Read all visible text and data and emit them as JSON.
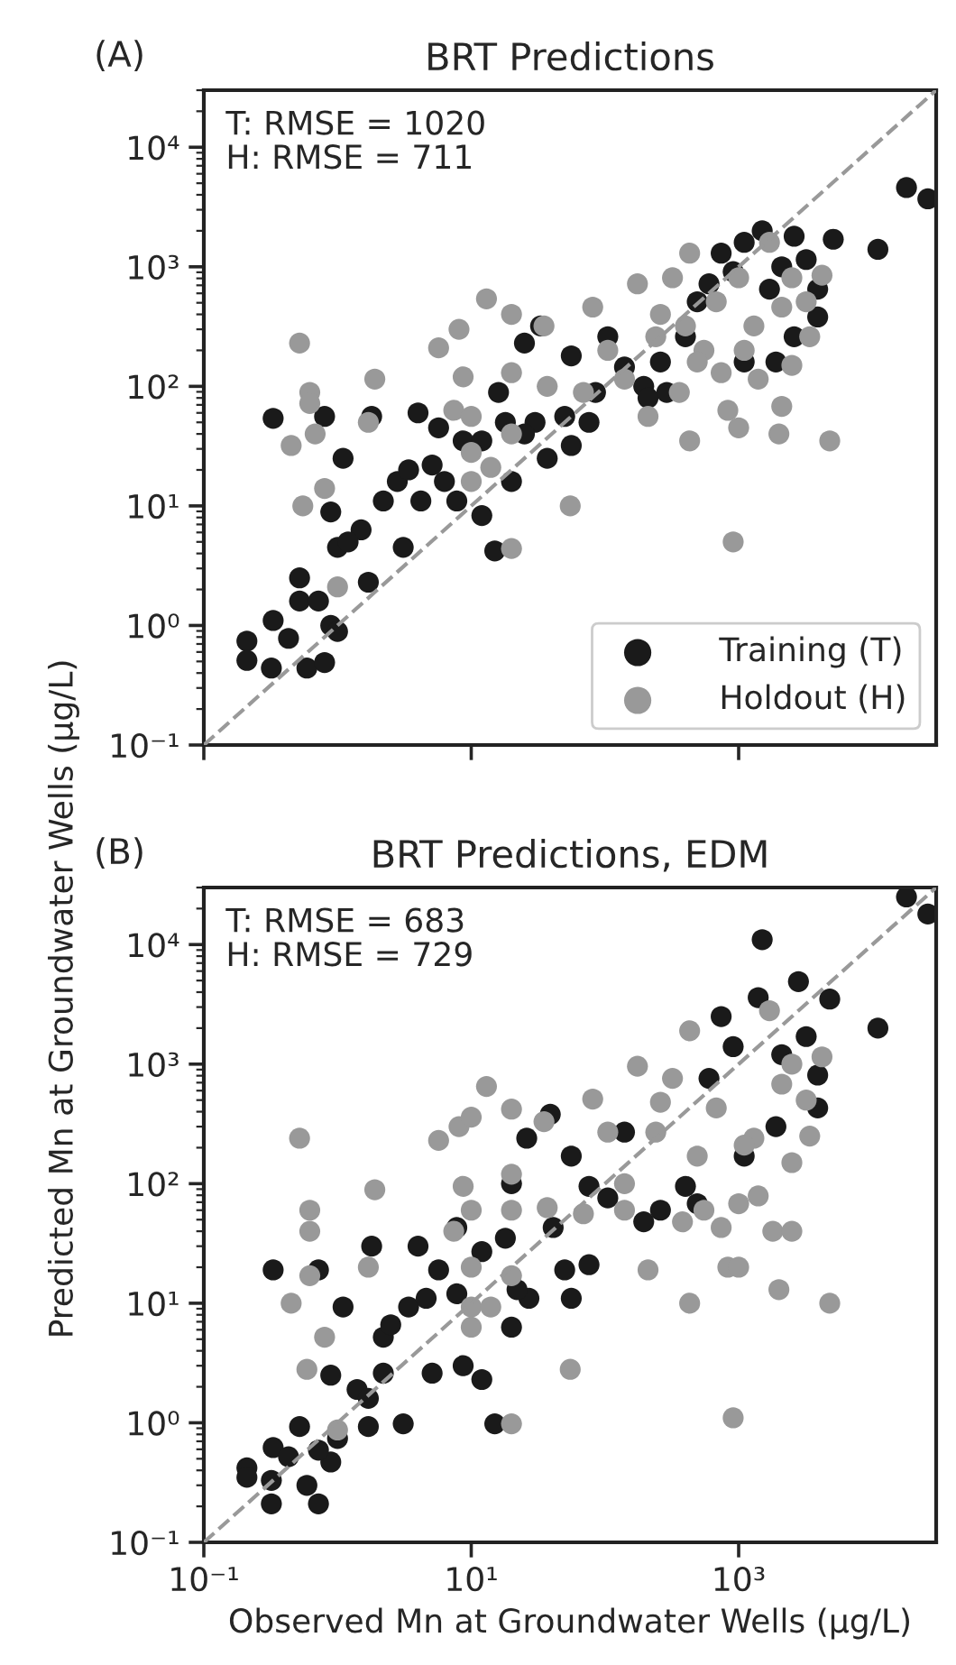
{
  "chart_data": [
    {
      "type": "scatter",
      "title": "BRT Predictions",
      "annotations": [
        "(A)",
        "T: RMSE = 1020",
        "H: RMSE = 711"
      ],
      "xlim": [
        0.1,
        30000
      ],
      "ylim": [
        0.1,
        30000
      ],
      "log": "xy",
      "grid": false,
      "legend": "lower right",
      "tick_labels": "y",
      "xticks": [
        {
          "value": 0.1,
          "label": null
        },
        {
          "value": 10,
          "label": null
        },
        {
          "value": 1000,
          "label": null
        }
      ],
      "yticks": [
        {
          "value": 0.1,
          "label": "10⁻¹"
        },
        {
          "value": 1,
          "label": "10⁰"
        },
        {
          "value": 10,
          "label": "10¹"
        },
        {
          "value": 100,
          "label": "10²"
        },
        {
          "value": 1000,
          "label": "10³"
        },
        {
          "value": 10000,
          "label": "10⁴"
        }
      ],
      "series": [
        {
          "type": "line",
          "line_style": "dashed",
          "color": "#999999",
          "x": [
            0.1,
            30000
          ],
          "values": [
            0.1,
            30000
          ]
        },
        {
          "name": "Training (T)",
          "marker": "circle",
          "color": "#1a1a1a",
          "x": [
            0.33,
            0.21,
            0.21,
            0.32,
            0.33,
            0.52,
            0.52,
            0.59,
            0.8,
            0.89,
            1.0,
            0.8,
            1.1,
            0.89,
            1.0,
            1.5,
            1.7,
            1.8,
            2.2,
            2.8,
            3.1,
            3.4,
            4.2,
            4.0,
            5.1,
            5.7,
            6.3,
            7.8,
            8.7,
            12,
            15,
            18,
            20,
            25,
            33,
            30,
            37,
            50,
            56,
            56,
            76,
            85,
            105,
            140,
            195,
            210,
            260,
            400,
            490,
            740,
            1100,
            1500,
            2600,
            3200,
            3900,
            3900,
            2600,
            1900,
            1100,
            5100,
            11000,
            18000,
            26000,
            600,
            910,
            2100,
            1700,
            290,
            0.72,
            0.43,
            1.2,
            16,
            12,
            25
          ],
          "values": [
            54,
            0.74,
            0.51,
            0.44,
            1.1,
            2.5,
            1.6,
            0.44,
            0.49,
            1.0,
            0.89,
            56,
            25,
            8.9,
            4.5,
            6.3,
            2.3,
            56,
            11,
            16,
            4.5,
            20,
            11,
            60,
            22,
            45,
            16,
            11,
            35,
            8.3,
            4.2,
            50,
            16,
            230,
            320,
            50,
            25,
            56,
            32,
            180,
            50,
            89,
            260,
            145,
            100,
            80,
            160,
            260,
            510,
            1300,
            1600,
            2000,
            1800,
            1150,
            650,
            380,
            260,
            160,
            160,
            1700,
            1400,
            4600,
            3700,
            720,
            910,
            1000,
            650,
            89,
            1.6,
            0.78,
            5.0,
            89,
            35,
            40
          ]
        },
        {
          "name": "Holdout (H)",
          "marker": "circle",
          "color": "#999999",
          "x": [
            0.52,
            0.62,
            0.62,
            0.45,
            0.68,
            0.55,
            0.8,
            1.0,
            1.9,
            1.7,
            5.7,
            8.1,
            13,
            20,
            8.7,
            7.4,
            10,
            10,
            10,
            14,
            20,
            20,
            20,
            37,
            35,
            55,
            81,
            69,
            105,
            140,
            175,
            210,
            260,
            320,
            400,
            360,
            430,
            430,
            550,
            680,
            740,
            830,
            1000,
            910,
            1000,
            1300,
            1400,
            1700,
            2100,
            2500,
            2500,
            2100,
            2000,
            3400,
            3200,
            4200,
            4800,
            240,
            490,
            1100
          ],
          "values": [
            230,
            89,
            72,
            32,
            40,
            10,
            14,
            2.1,
            115,
            50,
            210,
            300,
            540,
            400,
            120,
            63,
            56,
            28,
            16,
            21,
            130,
            40,
            4.4,
            100,
            320,
            10,
            460,
            89,
            200,
            115,
            720,
            56,
            400,
            810,
            320,
            89,
            1300,
            35,
            200,
            510,
            130,
            63,
            45,
            5.0,
            810,
            320,
            115,
            1600,
            460,
            810,
            150,
            68,
            40,
            260,
            510,
            850,
            35,
            260,
            160,
            200
          ]
        }
      ]
    },
    {
      "type": "scatter",
      "title": "BRT Predictions, EDM",
      "annotations": [
        "(B)",
        "T: RMSE = 683",
        "H: RMSE = 729"
      ],
      "xlabel": "Observed Mn at Groundwater Wells (µg/L)",
      "ylabel": "Predicted Mn at Groundwater Wells (µg/L)",
      "xlim": [
        0.1,
        30000
      ],
      "ylim": [
        0.1,
        30000
      ],
      "log": "xy",
      "grid": false,
      "xticks": [
        {
          "value": 0.1,
          "label": "10⁻¹"
        },
        {
          "value": 10,
          "label": "10¹"
        },
        {
          "value": 1000,
          "label": "10³"
        }
      ],
      "yticks": [
        {
          "value": 0.1,
          "label": "10⁻¹"
        },
        {
          "value": 1,
          "label": "10⁰"
        },
        {
          "value": 10,
          "label": "10¹"
        },
        {
          "value": 100,
          "label": "10²"
        },
        {
          "value": 1000,
          "label": "10³"
        },
        {
          "value": 10000,
          "label": "10⁴"
        }
      ],
      "series": [
        {
          "type": "line",
          "line_style": "dashed",
          "color": "#999999",
          "x": [
            0.1,
            30000
          ],
          "values": [
            0.1,
            30000
          ]
        },
        {
          "marker": "circle",
          "color": "#1a1a1a",
          "x": [
            0.33,
            0.21,
            0.21,
            0.32,
            0.32,
            0.33,
            0.52,
            0.59,
            0.72,
            0.89,
            1.0,
            0.72,
            1.1,
            0.89,
            1.4,
            1.7,
            1.8,
            2.2,
            2.5,
            2.2,
            3.1,
            3.4,
            4.0,
            4.6,
            5.1,
            5.7,
            7.8,
            7.8,
            8.7,
            12,
            15,
            18,
            20,
            20,
            26,
            39,
            27,
            41,
            50,
            56,
            76,
            56,
            76,
            105,
            140,
            195,
            260,
            400,
            490,
            740,
            1400,
            1500,
            2800,
            4800,
            11000,
            18000,
            26000,
            3900,
            3900,
            3200,
            2100,
            1900,
            1100,
            910,
            600,
            0.43,
            0.72,
            1.7,
            12,
            22
          ],
          "values": [
            19,
            0.42,
            0.35,
            0.21,
            0.33,
            0.62,
            0.93,
            0.3,
            0.21,
            0.47,
            0.74,
            19,
            9.3,
            2.5,
            1.9,
            0.93,
            30,
            5.2,
            6.6,
            2.6,
            0.98,
            9.3,
            30,
            11,
            2.6,
            19,
            43,
            12,
            3.0,
            2.3,
            0.98,
            35,
            6.3,
            100,
            240,
            380,
            11,
            43,
            19,
            11,
            21,
            170,
            95,
            76,
            270,
            48,
            60,
            95,
            68,
            2500,
            3600,
            11000,
            4900,
            3500,
            2000,
            25000,
            18000,
            810,
            430,
            1700,
            1200,
            300,
            170,
            1400,
            760,
            0.52,
            0.59,
            1.6,
            27,
            13
          ]
        },
        {
          "marker": "circle",
          "color": "#999999",
          "x": [
            0.52,
            0.62,
            0.62,
            0.45,
            0.62,
            0.8,
            0.59,
            1.0,
            1.9,
            1.7,
            5.7,
            8.1,
            10,
            13,
            20,
            8.7,
            7.4,
            10,
            10,
            10,
            10,
            14,
            20,
            20,
            20,
            20,
            35,
            37,
            55,
            69,
            81,
            105,
            140,
            140,
            175,
            210,
            260,
            320,
            380,
            430,
            430,
            550,
            680,
            740,
            830,
            1000,
            910,
            1000,
            1300,
            1400,
            1700,
            2100,
            2500,
            2500,
            1800,
            2500,
            2000,
            3400,
            3200,
            4200,
            4800,
            240,
            490,
            1100
          ],
          "values": [
            240,
            60,
            40,
            10,
            17,
            5.2,
            2.8,
            0.87,
            89,
            20,
            230,
            300,
            360,
            650,
            420,
            95,
            40,
            60,
            20,
            9.3,
            6.3,
            9.3,
            120,
            60,
            17,
            0.98,
            330,
            63,
            2.8,
            56,
            510,
            270,
            100,
            60,
            960,
            19,
            480,
            760,
            48,
            1900,
            10,
            60,
            430,
            43,
            20,
            20,
            1.1,
            68,
            240,
            79,
            2800,
            680,
            1000,
            150,
            40,
            40,
            13,
            250,
            500,
            1150,
            10,
            270,
            170,
            210
          ]
        }
      ]
    }
  ]
}
